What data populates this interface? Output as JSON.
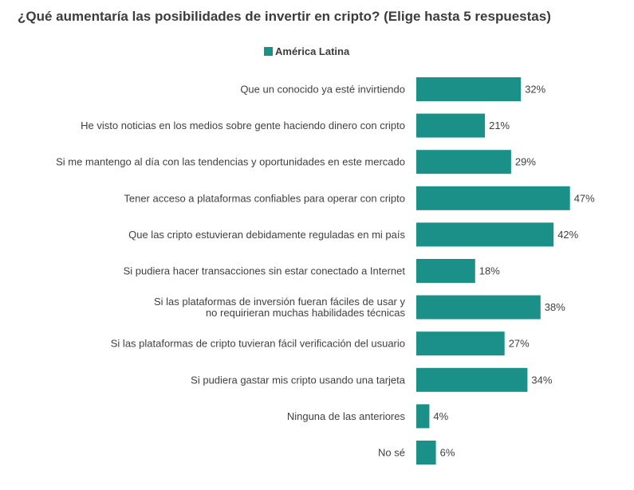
{
  "title": "¿Qué aumentaría las posibilidades de invertir en cripto? (Elige hasta 5 respuestas)",
  "colors": {
    "bar": "#1a9088",
    "text": "#404040"
  },
  "chart_data": {
    "type": "bar",
    "orientation": "horizontal",
    "title": "¿Qué aumentaría las posibilidades de invertir en cripto? (Elige hasta 5 respuestas)",
    "xlabel": "",
    "ylabel": "",
    "unit": "%",
    "legend": {
      "position": "top-center",
      "entries": [
        "América Latina"
      ]
    },
    "grid": false,
    "categories": [
      [
        "Que un conocido ya esté invirtiendo"
      ],
      [
        "He visto noticias en los medios sobre gente haciendo dinero con cripto"
      ],
      [
        "Si me mantengo al día con las tendencias y oportunidades en este mercado"
      ],
      [
        "Tener acceso a plataformas confiables para operar con cripto"
      ],
      [
        "Que las cripto estuvieran debidamente reguladas en mi país"
      ],
      [
        "Si pudiera hacer transacciones sin estar conectado a Internet"
      ],
      [
        "Si las plataformas de inversión fueran fáciles de usar y",
        "no requirieran muchas habilidades técnicas"
      ],
      [
        "Si las plataformas de cripto tuvieran fácil verificación del usuario"
      ],
      [
        "Si pudiera gastar mis cripto usando una tarjeta"
      ],
      [
        "Ninguna de las anteriores"
      ],
      [
        "No sé"
      ]
    ],
    "series": [
      {
        "name": "América Latina",
        "values": [
          32,
          21,
          29,
          47,
          42,
          18,
          38,
          27,
          34,
          4,
          6
        ]
      }
    ],
    "labels": [
      "32%",
      "21%",
      "29%",
      "47%",
      "42%",
      "18%",
      "38%",
      "27%",
      "34%",
      "4%",
      "6%"
    ]
  }
}
